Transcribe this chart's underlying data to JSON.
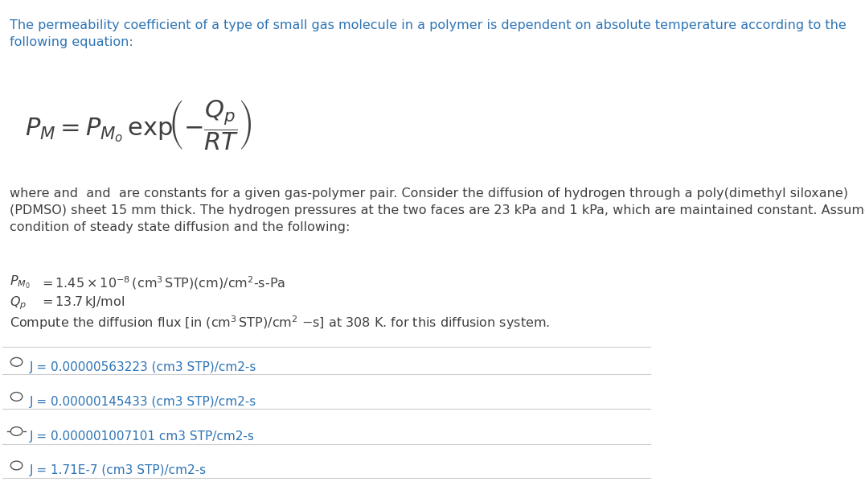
{
  "background_color": "#ffffff",
  "title_text": "The permeability coefficient of a type of small gas molecule in a polymer is dependent on absolute temperature according to the\nfollowing equation:",
  "title_color": "#2e74b5",
  "title_fontsize": 11.5,
  "body_color": "#404040",
  "body_fontsize": 11.5,
  "math_color": "#404040",
  "paragraph1": "where and  and  are constants for a given gas-polymer pair. Consider the diffusion of hydrogen through a poly(dimethyl siloxane)\n(PDMSO) sheet 15 mm thick. The hydrogen pressures at the two faces are 23 kPa and 1 kPa, which are maintained constant. Assume a\ncondition of steady state diffusion and the following:",
  "options": [
    "J = 0.00000563223 (cm3 STP)/cm2-s",
    "J = 0.00000145433 (cm3 STP)/cm2-s",
    "J = 0.000001007101 cm3 STP/cm2-s",
    "J = 1.71E-7 (cm3 STP)/cm2-s"
  ],
  "correct_option_index": 2,
  "option_color": "#2e74b5",
  "option_fontsize": 11.0,
  "divider_color": "#cccccc",
  "circle_color": "#555555",
  "check_color": "#555555"
}
